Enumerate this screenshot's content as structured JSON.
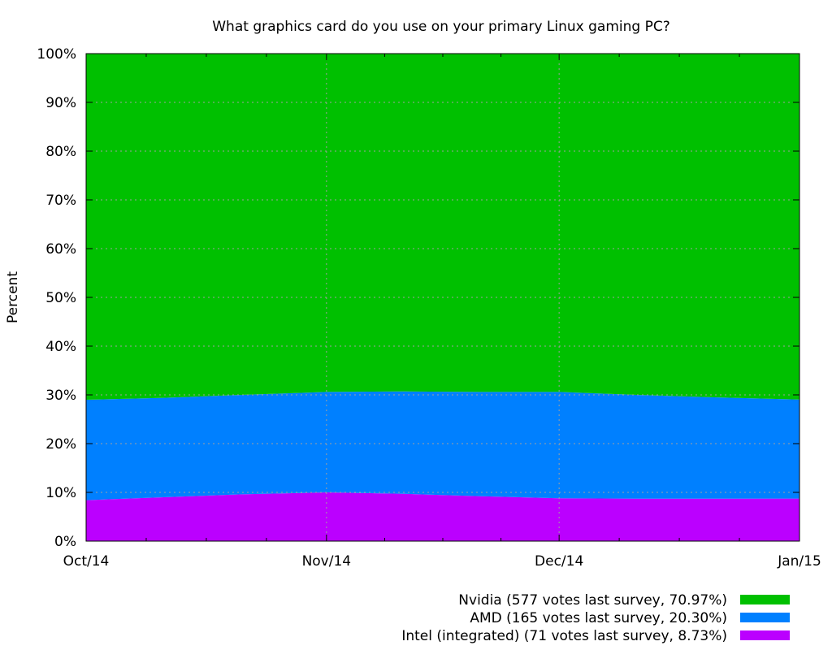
{
  "chart_data": {
    "type": "area",
    "stacked": true,
    "title": "What graphics card do you use on your primary Linux gaming PC?",
    "xlabel": "",
    "ylabel": "Percent",
    "ylim": [
      0,
      100
    ],
    "y_ticks": [
      "0%",
      "10%",
      "20%",
      "30%",
      "40%",
      "50%",
      "60%",
      "70%",
      "80%",
      "90%",
      "100%"
    ],
    "y_tick_values": [
      0,
      10,
      20,
      30,
      40,
      50,
      60,
      70,
      80,
      90,
      100
    ],
    "x_ticks": [
      "Oct/14",
      "Nov/14",
      "Dec/14",
      "Jan/15"
    ],
    "x_tick_dates": [
      "2014-10-01",
      "2014-11-01",
      "2014-12-01",
      "2015-01-01"
    ],
    "x_minor_ticks_per_interval": 3,
    "grid": true,
    "legend_position": "bottom-right",
    "x": [
      "2014-10-01",
      "2014-10-11",
      "2014-10-21",
      "2014-11-01",
      "2014-11-11",
      "2014-11-21",
      "2014-12-01",
      "2014-12-11",
      "2014-12-21",
      "2015-01-01"
    ],
    "series": [
      {
        "name": "Intel (integrated) (71 votes last survey, 8.73%)",
        "color": "#bb00ff",
        "values": [
          8.4,
          9.0,
          9.6,
          10.0,
          9.7,
          9.2,
          8.8,
          8.7,
          8.7,
          8.73
        ]
      },
      {
        "name": "AMD (165 votes last survey, 20.30%)",
        "color": "#0080ff",
        "values": [
          20.6,
          20.4,
          20.4,
          20.6,
          21.0,
          21.4,
          21.8,
          21.3,
          20.8,
          20.3
        ]
      },
      {
        "name": "Nvidia (577 votes last survey, 70.97%)",
        "color": "#00c000",
        "values": [
          71.0,
          70.6,
          70.0,
          69.4,
          69.3,
          69.4,
          69.4,
          70.0,
          70.5,
          70.97
        ]
      }
    ],
    "legend_order": [
      2,
      1,
      0
    ]
  }
}
